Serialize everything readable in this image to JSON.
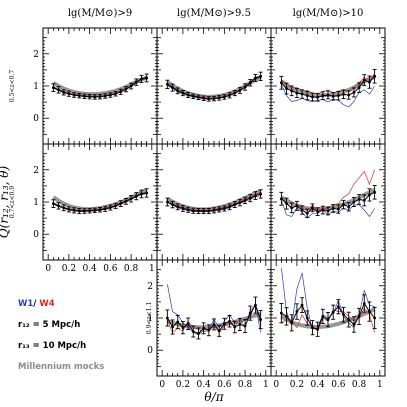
{
  "figure": {
    "ylabel": "Q(r₁₂, r₁₃, θ)",
    "xlabel": "θ/π",
    "column_titles": [
      "lg(M/M⊙)>9",
      "lg(M/M⊙)>9.5",
      "lg(M/M⊙)>10"
    ],
    "row_labels": [
      "0.5<z<0.7",
      "0.7<z<0.9",
      "0.9<z<1.1"
    ],
    "ytick_labels": [
      "0",
      "1",
      "2"
    ],
    "xtick_labels": [
      "0",
      "0.2",
      "0.4",
      "0.6",
      "0.8",
      "1"
    ]
  },
  "legend": {
    "w1": "W1",
    "slash": "/",
    "w4": "W4",
    "r12": "r₁₂ = 5 Mpc/h",
    "r13": "r₁₃ = 10 Mpc/h",
    "mocks": "Millennium mocks"
  },
  "colors": {
    "data": "#000000",
    "w1": "#2a3fbf",
    "w4": "#e0291d",
    "mocks": "#8c8c8c"
  },
  "chart_data": {
    "type": "line",
    "x": [
      0.05,
      0.1,
      0.15,
      0.2,
      0.25,
      0.3,
      0.35,
      0.4,
      0.45,
      0.5,
      0.55,
      0.6,
      0.65,
      0.7,
      0.75,
      0.8,
      0.85,
      0.9,
      0.95
    ],
    "xlim": [
      -0.05,
      1.05
    ],
    "ylim": [
      -0.8,
      2.8
    ],
    "panels": [
      {
        "row": 0,
        "col": 0,
        "data": [
          0.95,
          0.88,
          0.8,
          0.76,
          0.72,
          0.7,
          0.68,
          0.67,
          0.66,
          0.67,
          0.69,
          0.72,
          0.76,
          0.82,
          0.9,
          1.0,
          1.12,
          1.22,
          1.25
        ],
        "err": [
          0.12,
          0.1,
          0.08,
          0.08,
          0.07,
          0.07,
          0.07,
          0.07,
          0.07,
          0.07,
          0.07,
          0.07,
          0.07,
          0.08,
          0.08,
          0.09,
          0.1,
          0.11,
          0.12
        ],
        "w1": [
          0.93,
          0.86,
          0.79,
          0.75,
          0.71,
          0.69,
          0.67,
          0.66,
          0.66,
          0.67,
          0.68,
          0.71,
          0.75,
          0.81,
          0.89,
          0.98,
          1.1,
          1.2,
          1.23
        ],
        "w4": [
          0.98,
          0.9,
          0.83,
          0.78,
          0.74,
          0.72,
          0.7,
          0.69,
          0.68,
          0.69,
          0.71,
          0.74,
          0.78,
          0.84,
          0.92,
          1.02,
          1.14,
          1.24,
          1.27
        ],
        "mock": [
          1.1,
          1.0,
          0.92,
          0.86,
          0.81,
          0.78,
          0.76,
          0.75,
          0.75,
          0.76,
          0.78,
          0.81,
          0.85,
          0.9,
          0.97,
          1.05,
          1.13,
          1.2,
          1.26
        ]
      },
      {
        "row": 0,
        "col": 1,
        "data": [
          1.05,
          0.95,
          0.85,
          0.78,
          0.72,
          0.68,
          0.65,
          0.62,
          0.6,
          0.61,
          0.63,
          0.66,
          0.71,
          0.78,
          0.86,
          0.97,
          1.1,
          1.25,
          1.3
        ],
        "err": [
          0.13,
          0.11,
          0.09,
          0.08,
          0.08,
          0.07,
          0.07,
          0.07,
          0.07,
          0.07,
          0.07,
          0.07,
          0.08,
          0.08,
          0.09,
          0.1,
          0.1,
          0.11,
          0.13
        ],
        "w1": [
          1.02,
          0.92,
          0.82,
          0.76,
          0.7,
          0.66,
          0.63,
          0.6,
          0.58,
          0.6,
          0.62,
          0.65,
          0.7,
          0.77,
          0.85,
          0.96,
          1.08,
          1.22,
          1.27
        ],
        "w4": [
          1.08,
          0.97,
          0.87,
          0.8,
          0.74,
          0.7,
          0.67,
          0.64,
          0.62,
          0.63,
          0.65,
          0.68,
          0.73,
          0.8,
          0.88,
          0.99,
          1.12,
          1.27,
          1.32
        ],
        "mock": [
          1.12,
          1.02,
          0.92,
          0.84,
          0.78,
          0.73,
          0.69,
          0.67,
          0.66,
          0.67,
          0.69,
          0.72,
          0.77,
          0.83,
          0.91,
          1.0,
          1.1,
          1.2,
          1.28
        ]
      },
      {
        "row": 0,
        "col": 2,
        "data": [
          1.1,
          0.92,
          0.85,
          0.78,
          0.75,
          0.7,
          0.66,
          0.65,
          0.7,
          0.72,
          0.68,
          0.7,
          0.74,
          0.72,
          0.8,
          0.95,
          1.18,
          1.12,
          1.3
        ],
        "err": [
          0.2,
          0.17,
          0.15,
          0.14,
          0.13,
          0.13,
          0.12,
          0.12,
          0.12,
          0.12,
          0.12,
          0.13,
          0.13,
          0.13,
          0.14,
          0.15,
          0.17,
          0.19,
          0.21
        ],
        "w1": [
          1.05,
          0.7,
          0.52,
          0.55,
          0.62,
          0.55,
          0.52,
          0.55,
          0.58,
          0.5,
          0.6,
          0.55,
          0.42,
          0.35,
          0.52,
          0.8,
          0.88,
          0.75,
          1.0
        ],
        "w4": [
          1.2,
          1.05,
          0.96,
          0.95,
          0.87,
          0.86,
          0.78,
          0.76,
          0.82,
          0.88,
          0.78,
          0.84,
          0.9,
          0.84,
          0.95,
          1.1,
          1.26,
          1.18,
          1.38
        ],
        "mock": [
          1.15,
          1.03,
          0.93,
          0.86,
          0.8,
          0.76,
          0.73,
          0.71,
          0.71,
          0.72,
          0.74,
          0.77,
          0.82,
          0.88,
          0.95,
          1.04,
          1.13,
          1.22,
          1.28
        ]
      },
      {
        "row": 1,
        "col": 0,
        "data": [
          0.95,
          0.88,
          0.82,
          0.77,
          0.74,
          0.72,
          0.72,
          0.73,
          0.74,
          0.76,
          0.79,
          0.83,
          0.88,
          0.95,
          1.02,
          1.1,
          1.18,
          1.25,
          1.28
        ],
        "err": [
          0.12,
          0.1,
          0.09,
          0.08,
          0.08,
          0.08,
          0.07,
          0.07,
          0.07,
          0.07,
          0.08,
          0.08,
          0.08,
          0.09,
          0.09,
          0.1,
          0.11,
          0.12,
          0.13
        ],
        "w1": [
          0.93,
          0.86,
          0.8,
          0.75,
          0.72,
          0.7,
          0.7,
          0.71,
          0.72,
          0.74,
          0.77,
          0.81,
          0.86,
          0.93,
          1.0,
          1.08,
          1.16,
          1.23,
          1.26
        ],
        "w4": [
          0.98,
          0.9,
          0.84,
          0.79,
          0.76,
          0.74,
          0.74,
          0.75,
          0.76,
          0.78,
          0.81,
          0.85,
          0.9,
          0.97,
          1.04,
          1.12,
          1.2,
          1.27,
          1.3
        ],
        "mock": [
          1.15,
          1.04,
          0.95,
          0.88,
          0.83,
          0.8,
          0.78,
          0.78,
          0.79,
          0.81,
          0.84,
          0.88,
          0.93,
          0.99,
          1.06,
          1.14,
          1.22,
          1.3,
          1.38
        ]
      },
      {
        "row": 1,
        "col": 1,
        "data": [
          1.0,
          0.92,
          0.85,
          0.8,
          0.76,
          0.73,
          0.72,
          0.72,
          0.72,
          0.74,
          0.77,
          0.8,
          0.85,
          0.92,
          0.98,
          1.05,
          1.12,
          1.2,
          1.25
        ],
        "err": [
          0.12,
          0.1,
          0.09,
          0.09,
          0.08,
          0.08,
          0.08,
          0.08,
          0.08,
          0.08,
          0.08,
          0.08,
          0.09,
          0.09,
          0.1,
          0.1,
          0.11,
          0.12,
          0.13
        ],
        "w1": [
          0.98,
          0.9,
          0.82,
          0.77,
          0.73,
          0.7,
          0.7,
          0.69,
          0.7,
          0.72,
          0.74,
          0.78,
          0.82,
          0.9,
          0.96,
          1.02,
          1.08,
          1.16,
          1.2
        ],
        "w4": [
          1.02,
          0.94,
          0.88,
          0.83,
          0.79,
          0.76,
          0.75,
          0.75,
          0.75,
          0.77,
          0.8,
          0.83,
          0.88,
          0.95,
          1.01,
          1.09,
          1.16,
          1.24,
          1.3
        ],
        "mock": [
          1.1,
          1.01,
          0.93,
          0.87,
          0.82,
          0.79,
          0.77,
          0.77,
          0.78,
          0.8,
          0.83,
          0.87,
          0.92,
          0.98,
          1.05,
          1.12,
          1.2,
          1.28,
          1.34
        ]
      },
      {
        "row": 1,
        "col": 2,
        "data": [
          1.1,
          0.95,
          0.82,
          0.88,
          0.75,
          0.65,
          0.82,
          0.7,
          0.75,
          0.72,
          0.8,
          0.78,
          0.92,
          0.85,
          1.0,
          1.08,
          1.05,
          1.22,
          1.3
        ],
        "err": [
          0.2,
          0.17,
          0.15,
          0.14,
          0.13,
          0.13,
          0.12,
          0.12,
          0.12,
          0.12,
          0.12,
          0.13,
          0.13,
          0.13,
          0.14,
          0.15,
          0.17,
          0.19,
          0.21
        ],
        "w1": [
          1.05,
          0.6,
          0.55,
          0.82,
          0.68,
          0.5,
          0.65,
          0.65,
          0.75,
          0.6,
          0.72,
          0.68,
          0.8,
          0.75,
          0.9,
          0.92,
          0.75,
          0.55,
          0.8
        ],
        "w4": [
          1.15,
          0.98,
          0.78,
          0.92,
          0.82,
          0.72,
          0.9,
          0.75,
          0.8,
          0.8,
          0.9,
          0.95,
          1.15,
          1.25,
          1.55,
          1.75,
          1.95,
          1.55,
          2.0
        ],
        "mock": [
          1.15,
          1.05,
          0.96,
          0.89,
          0.84,
          0.8,
          0.78,
          0.78,
          0.79,
          0.81,
          0.84,
          0.88,
          0.93,
          0.99,
          1.06,
          1.14,
          1.22,
          1.3,
          1.38
        ]
      },
      {
        "row": 2,
        "col": 1,
        "data": [
          1.0,
          0.72,
          0.88,
          0.7,
          0.82,
          0.58,
          0.52,
          0.68,
          0.62,
          0.8,
          0.6,
          0.82,
          0.9,
          0.72,
          0.8,
          0.75,
          1.15,
          1.4,
          0.95
        ],
        "err": [
          0.25,
          0.22,
          0.2,
          0.19,
          0.18,
          0.17,
          0.17,
          0.17,
          0.17,
          0.17,
          0.17,
          0.17,
          0.18,
          0.18,
          0.19,
          0.2,
          0.22,
          0.25,
          0.28
        ],
        "w1": [
          2.05,
          1.2,
          1.1,
          0.85,
          0.7,
          0.55,
          0.48,
          0.62,
          0.65,
          0.95,
          0.7,
          0.9,
          1.1,
          0.85,
          0.82,
          0.95,
          1.05,
          1.45,
          0.55
        ],
        "w4": [
          0.92,
          0.55,
          0.68,
          0.6,
          0.9,
          0.7,
          0.65,
          0.58,
          0.6,
          0.75,
          0.55,
          0.75,
          0.85,
          0.72,
          0.98,
          0.7,
          1.25,
          1.4,
          0.8
        ],
        "mock": [
          0.9,
          0.85,
          0.8,
          0.77,
          0.74,
          0.72,
          0.71,
          0.71,
          0.72,
          0.74,
          0.77,
          0.8,
          0.84,
          0.88,
          0.93,
          0.98,
          1.03,
          1.08,
          1.12
        ]
      },
      {
        "row": 2,
        "col": 2,
        "data": [
          1.15,
          1.05,
          0.85,
          1.2,
          1.4,
          1.0,
          0.7,
          0.65,
          1.05,
          0.95,
          1.18,
          1.35,
          1.1,
          0.95,
          0.8,
          1.05,
          1.45,
          1.2,
          1.0
        ],
        "err": [
          0.3,
          0.27,
          0.25,
          0.24,
          0.23,
          0.22,
          0.22,
          0.22,
          0.22,
          0.22,
          0.22,
          0.22,
          0.23,
          0.23,
          0.24,
          0.25,
          0.27,
          0.3,
          0.33
        ],
        "w1": [
          2.55,
          1.2,
          0.78,
          1.9,
          2.4,
          1.3,
          0.65,
          0.7,
          1.1,
          1.0,
          1.15,
          1.55,
          1.05,
          0.85,
          0.7,
          1.1,
          1.85,
          1.4,
          1.35
        ],
        "w4": [
          0.85,
          0.95,
          0.9,
          0.7,
          1.1,
          0.82,
          0.75,
          0.6,
          1.0,
          0.9,
          1.25,
          1.2,
          1.2,
          1.05,
          0.9,
          1.0,
          1.3,
          1.1,
          0.55
        ],
        "mock": [
          1.05,
          0.95,
          0.87,
          0.81,
          0.77,
          0.74,
          0.72,
          0.72,
          0.73,
          0.75,
          0.78,
          0.82,
          0.87,
          0.93,
          0.99,
          1.06,
          1.13,
          1.2,
          1.27
        ]
      }
    ]
  }
}
